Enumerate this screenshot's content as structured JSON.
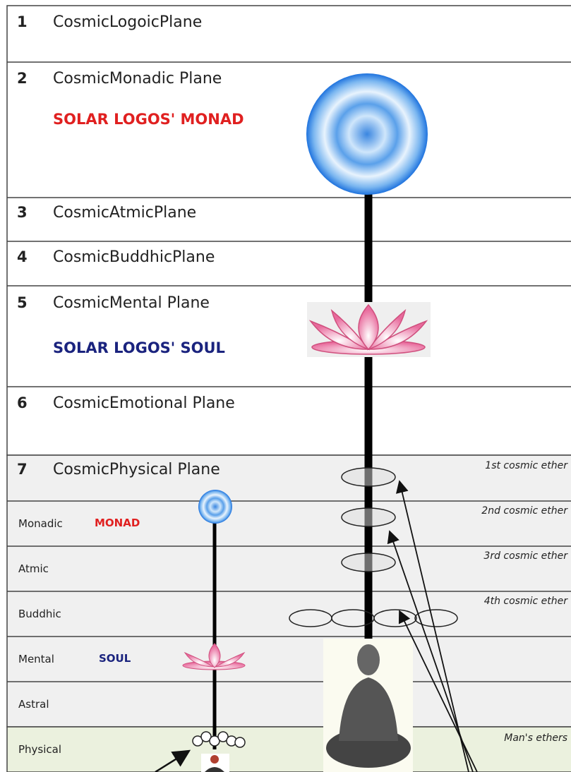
{
  "planes": [
    {
      "number": "1",
      "name": "CosmicLogoicPlane"
    },
    {
      "number": "2",
      "name": "CosmicMonadic Plane"
    },
    {
      "number": "3",
      "name": "CosmicAtmicPlane"
    },
    {
      "number": "4",
      "name": "CosmicBuddhicPlane"
    },
    {
      "number": "5",
      "name": "CosmicMental Plane"
    },
    {
      "number": "6",
      "name": "CosmicEmotional Plane"
    },
    {
      "number": "7",
      "name": "CosmicPhysical Plane"
    }
  ],
  "lower_planes": [
    {
      "name": "Monadic"
    },
    {
      "name": "Atmic"
    },
    {
      "name": "Buddhic"
    },
    {
      "name": "Mental"
    },
    {
      "name": "Astral"
    },
    {
      "name": "Physical"
    }
  ],
  "labels": {
    "solar_monad": "SOLAR LOGOS' MONAD",
    "solar_soul": "SOLAR LOGOS' SOUL",
    "monad": "MONAD",
    "soul": "SOUL"
  },
  "ethers": [
    "1st cosmic ether",
    "2nd cosmic ether",
    "3rd cosmic ether",
    "4th cosmic ether",
    "Man's ethers"
  ]
}
